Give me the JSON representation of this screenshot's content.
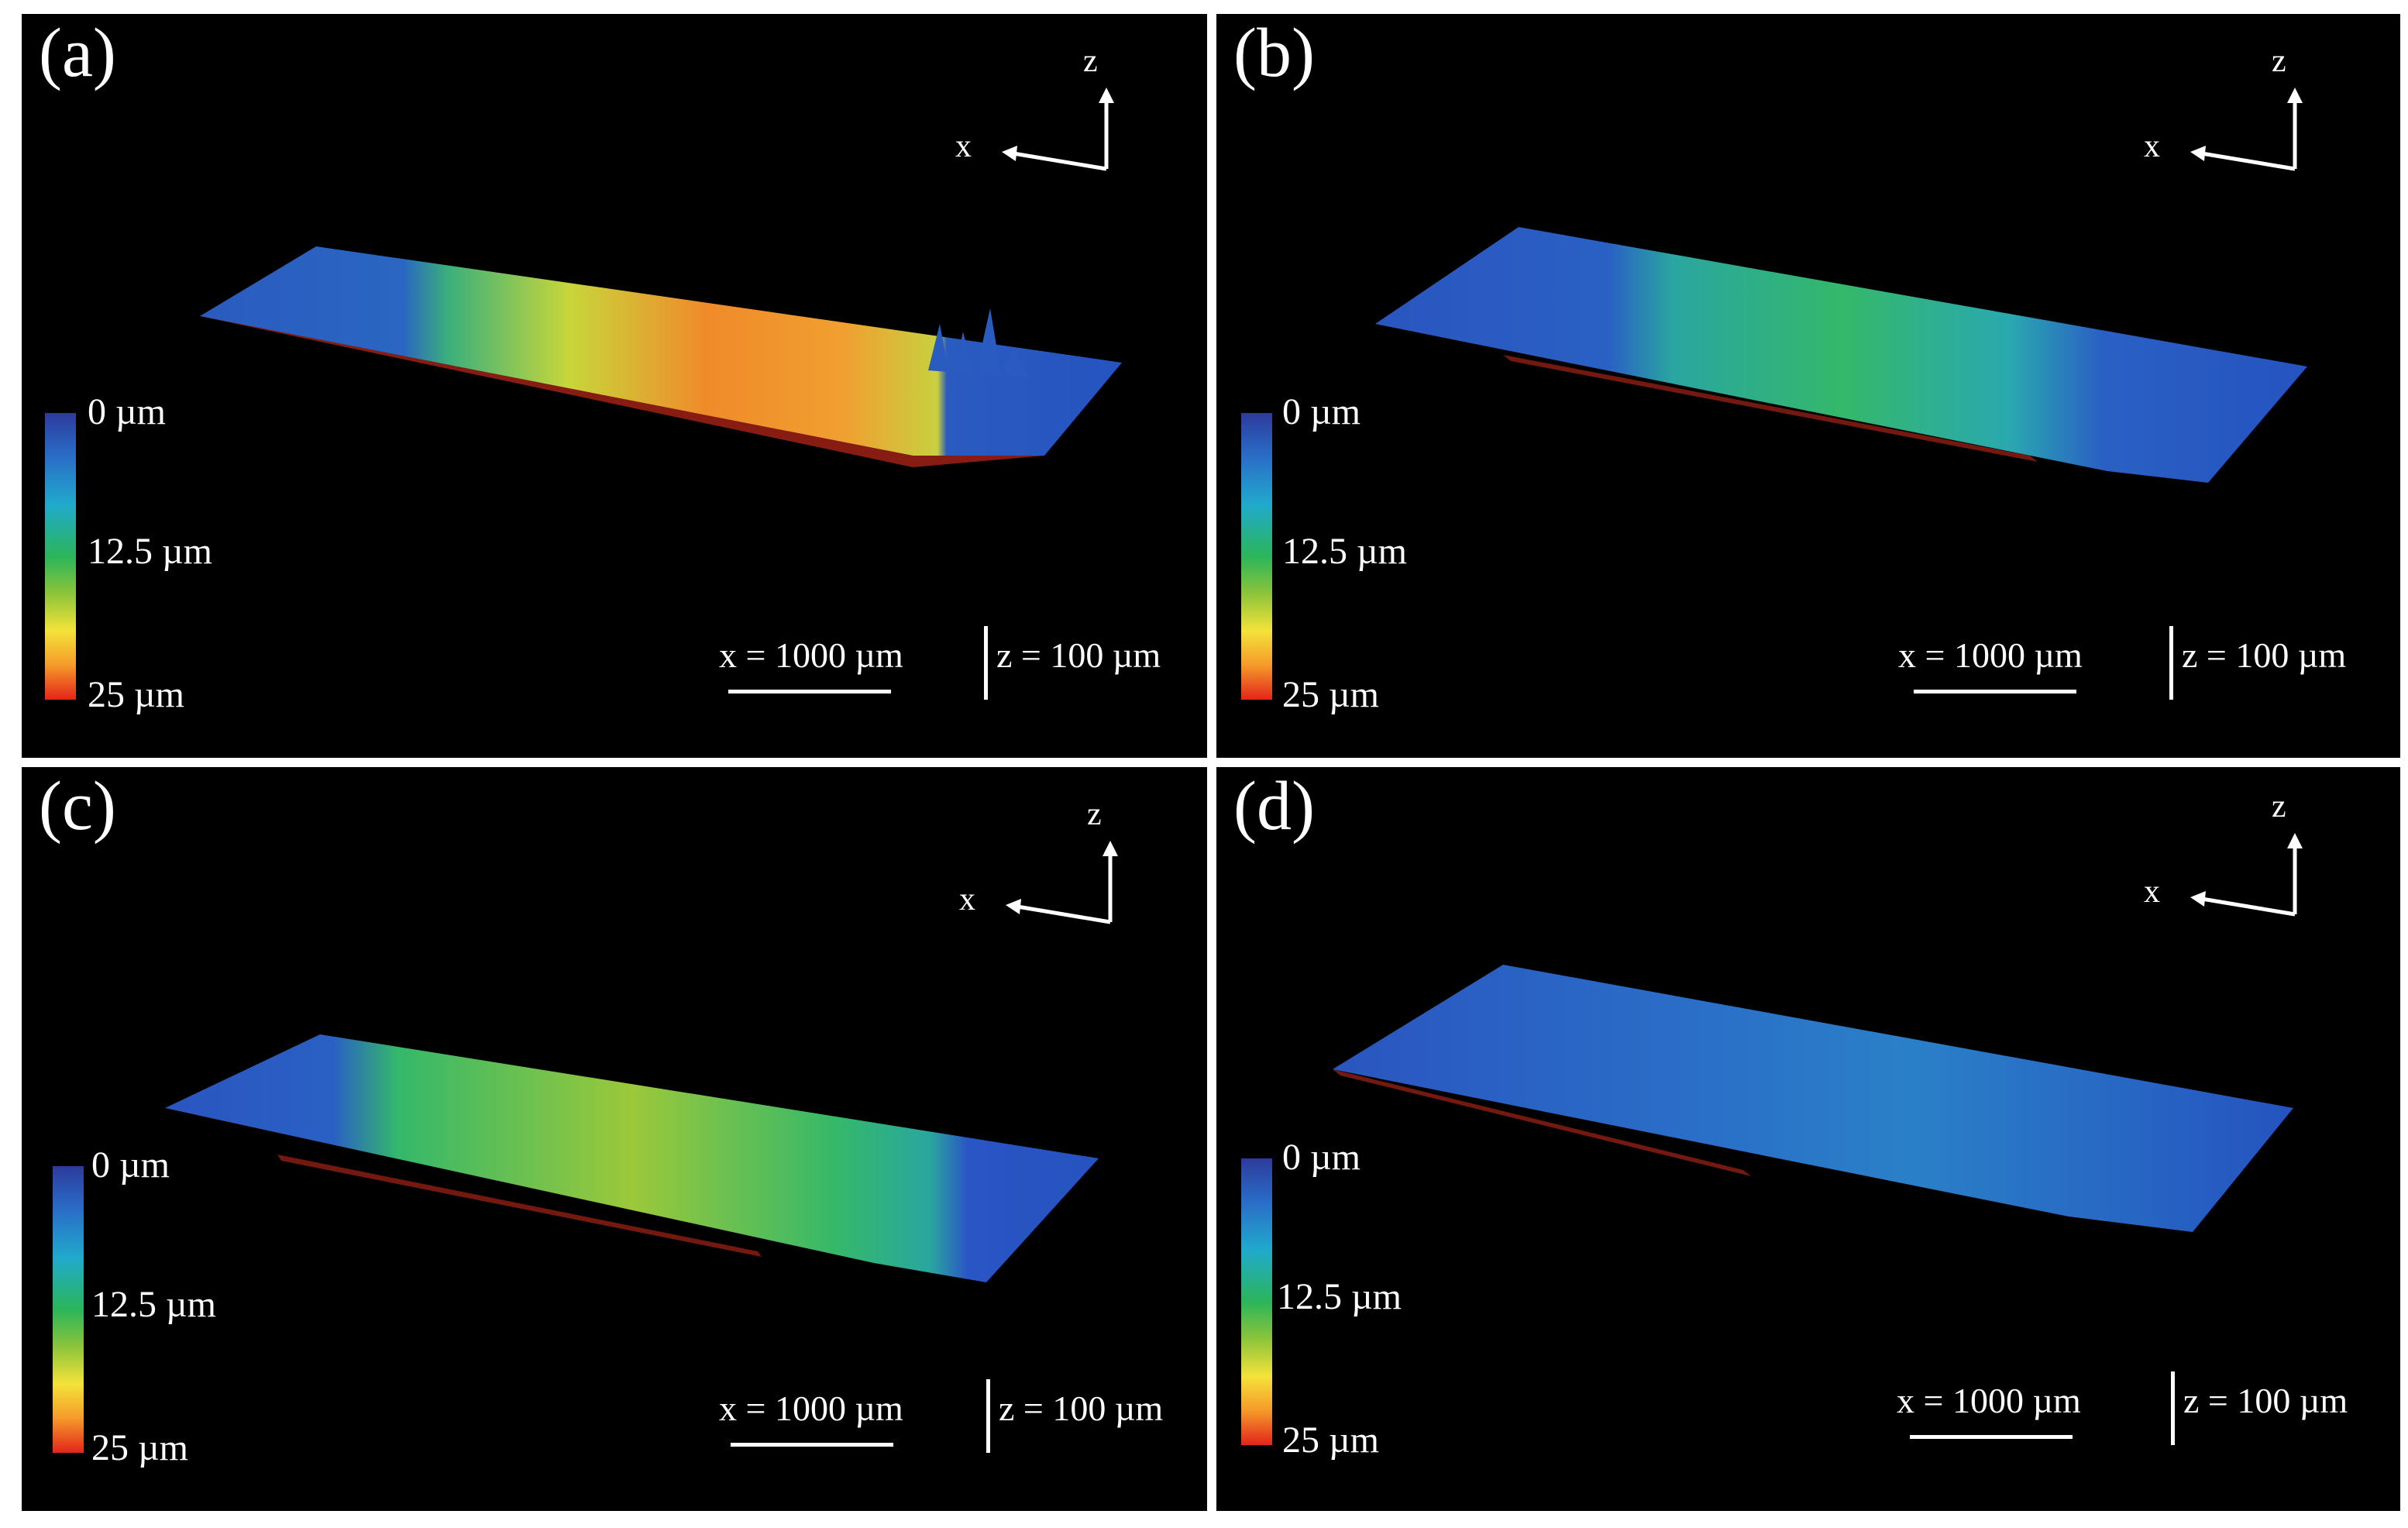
{
  "panels": [
    {
      "id": "a",
      "label": "(a)",
      "axes": {
        "x": "x",
        "z": "z"
      },
      "colorbar": {
        "top": "0 µm",
        "mid": "12.5 µm",
        "bottom": "25 µm"
      },
      "scale": {
        "x": "x = 1000 µm",
        "z": "z = 100 µm"
      }
    },
    {
      "id": "b",
      "label": "(b)",
      "axes": {
        "x": "x",
        "z": "z"
      },
      "colorbar": {
        "top": "0 µm",
        "mid": "12.5 µm",
        "bottom": "25 µm"
      },
      "scale": {
        "x": "x = 1000 µm",
        "z": "z = 100 µm"
      }
    },
    {
      "id": "c",
      "label": "(c)",
      "axes": {
        "x": "x",
        "z": "z"
      },
      "colorbar": {
        "top": "0 µm",
        "mid": "12.5 µm",
        "bottom": "25 µm"
      },
      "scale": {
        "x": "x = 1000 µm",
        "z": "z = 100 µm"
      }
    },
    {
      "id": "d",
      "label": "(d)",
      "axes": {
        "x": "x",
        "z": "z"
      },
      "colorbar": {
        "top": "0 µm",
        "mid": "12.5 µm",
        "bottom": "25 µm"
      },
      "scale": {
        "x": "x = 1000 µm",
        "z": "z = 100 µm"
      }
    }
  ],
  "colors": {
    "background": "#000000",
    "deep": "#e3241b",
    "mid": "#2bb55a",
    "shallow": "#2c3b9c"
  }
}
